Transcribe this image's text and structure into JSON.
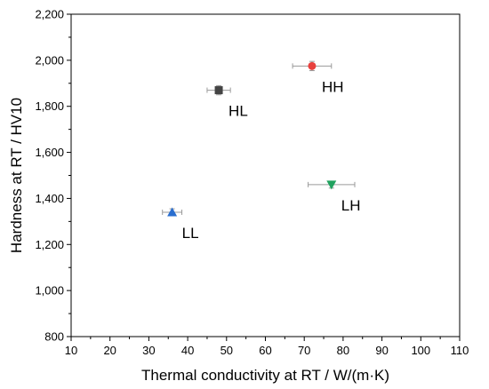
{
  "chart_data": {
    "type": "scatter",
    "xlabel": "Thermal conductivity at RT / W/(m·K)",
    "ylabel": "Hardness at RT / HV10",
    "xlim": [
      10,
      110
    ],
    "ylim": [
      800,
      2200
    ],
    "x_ticks": [
      "10",
      "20",
      "30",
      "40",
      "50",
      "60",
      "70",
      "80",
      "90",
      "100",
      "110"
    ],
    "y_ticks": [
      "800",
      "1,000",
      "1,200",
      "1,400",
      "1,600",
      "1,800",
      "2,000",
      "2,200"
    ],
    "grid": false,
    "points": [
      {
        "label": "HH",
        "x": 72,
        "y": 1975,
        "xerr": 5,
        "yerr": 20,
        "marker": "circle",
        "color": "#e8413e"
      },
      {
        "label": "HL",
        "x": 48,
        "y": 1870,
        "xerr": 3,
        "yerr": 20,
        "marker": "square",
        "color": "#444444"
      },
      {
        "label": "LH",
        "x": 77,
        "y": 1460,
        "xerr": 6,
        "yerr": 15,
        "marker": "triangle-down",
        "color": "#21a25f"
      },
      {
        "label": "LL",
        "x": 36,
        "y": 1340,
        "xerr": 2.5,
        "yerr": 15,
        "marker": "triangle-up",
        "color": "#2a6ecf"
      }
    ]
  }
}
